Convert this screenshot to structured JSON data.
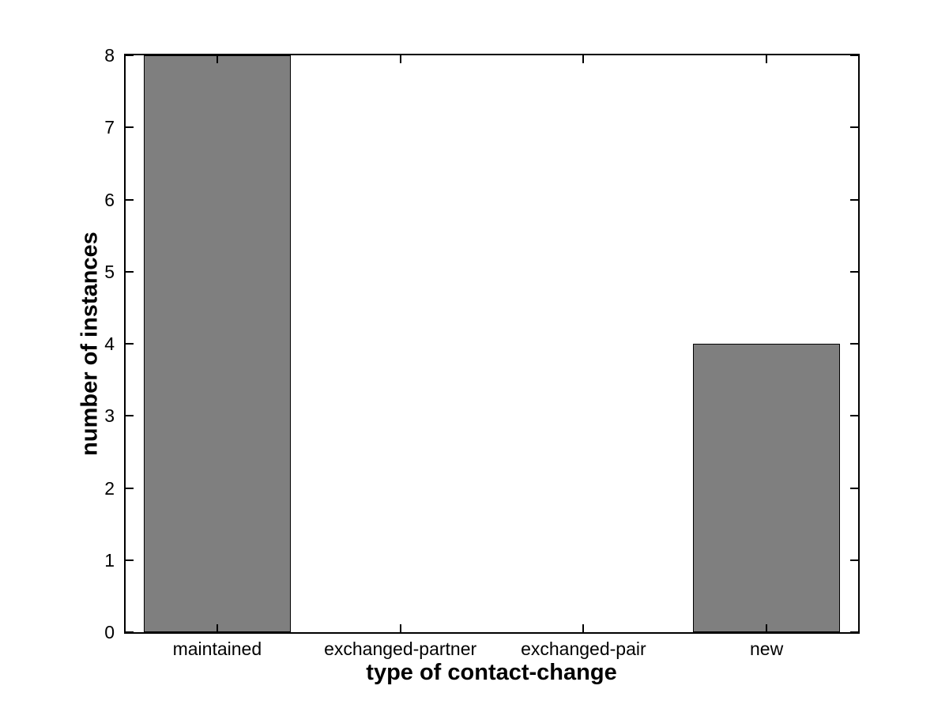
{
  "figure": {
    "background_color": "#ffffff"
  },
  "chart_data": {
    "type": "bar",
    "title": "",
    "categories": [
      "maintained",
      "exchanged-partner",
      "exchanged-pair",
      "new"
    ],
    "values": [
      8,
      0,
      0,
      4
    ],
    "xlabel": "type of contact-change",
    "ylabel": "number of instances",
    "ylim": [
      0,
      8
    ],
    "yticks": [
      0,
      1,
      2,
      3,
      4,
      5,
      6,
      7,
      8
    ],
    "ytick_labels": [
      "0",
      "1",
      "2",
      "3",
      "4",
      "5",
      "6",
      "7",
      "8"
    ],
    "bar_fill_color": "#7f7f7f",
    "bar_edge_color": "#000000",
    "axis_color": "#000000",
    "bar_width_fraction": 0.8,
    "grid": false,
    "legend": "none",
    "tick_style": "inward, mirrored on all four box sides"
  }
}
